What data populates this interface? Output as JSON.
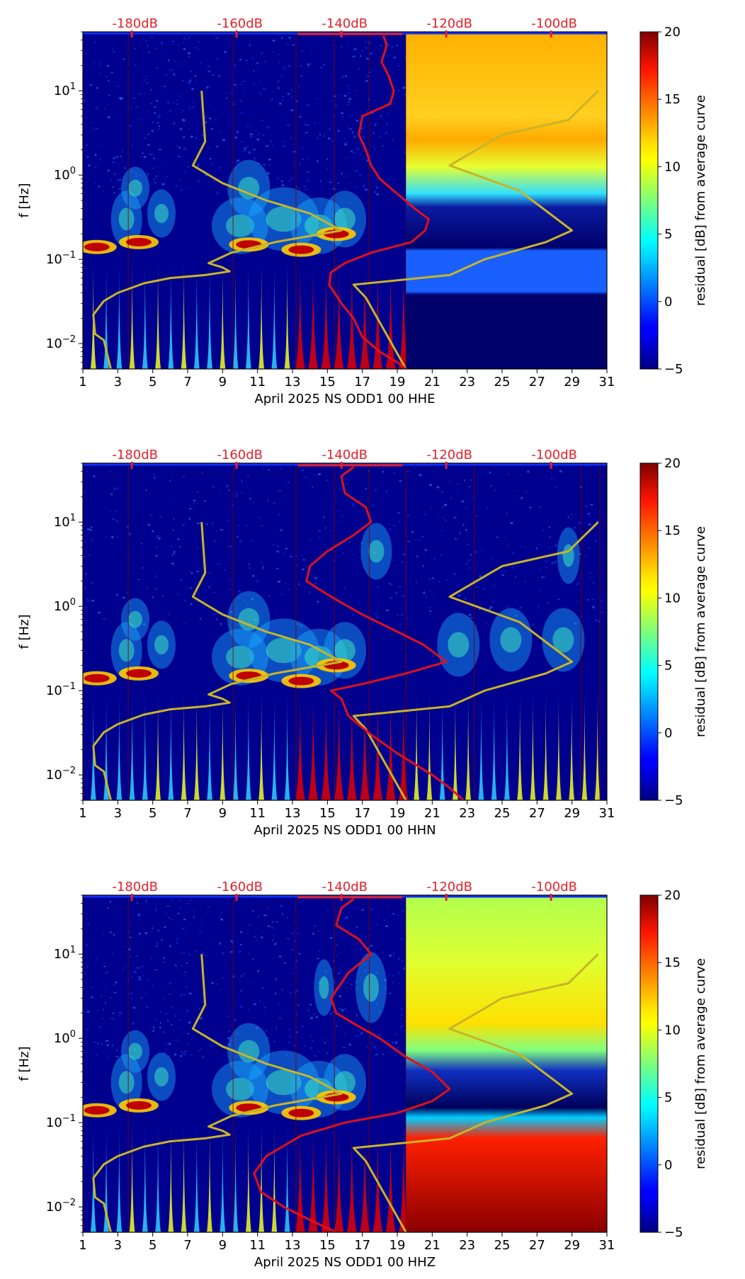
{
  "chart_data": [
    {
      "type": "heatmap",
      "channel": "HHE",
      "xlabel": "April 2025 NS ODD1 00 HHE",
      "ylabel": "f [Hz]",
      "x_ticks": [
        "1",
        "3",
        "5",
        "7",
        "9",
        "11",
        "13",
        "15",
        "17",
        "19",
        "21",
        "23",
        "25",
        "27",
        "29",
        "31"
      ],
      "xlim": [
        1,
        31
      ],
      "ylim": [
        0.005,
        50
      ],
      "y_scale": "log",
      "y_ticks": [
        {
          "value": 0.01,
          "base": "10",
          "exp": "−2"
        },
        {
          "value": 0.1,
          "base": "10",
          "exp": "−1"
        },
        {
          "value": 1,
          "base": "10",
          "exp": "0"
        },
        {
          "value": 10,
          "base": "10",
          "exp": "1"
        }
      ],
      "top_ticks": [
        "-180dB",
        "-160dB",
        "-140dB",
        "-120dB",
        "-100dB"
      ],
      "top_tick_color": "#e8202a",
      "colorbar": {
        "label": "residual [dB] from average curve",
        "min": -5,
        "max": 20,
        "ticks": [
          "20",
          "15",
          "10",
          "5",
          "0",
          "−5"
        ],
        "colormap": "jet"
      },
      "data_end_day": 19.5,
      "background_after_end": "orange-band",
      "yellow_curve": [
        [
          7.8,
          10
        ],
        [
          8.0,
          2.5
        ],
        [
          7.3,
          1.3
        ],
        [
          9.0,
          0.8
        ],
        [
          11.5,
          0.5
        ],
        [
          14.0,
          0.35
        ],
        [
          15.8,
          0.22
        ],
        [
          12.0,
          0.16
        ],
        [
          9.5,
          0.12
        ],
        [
          8.2,
          0.09
        ],
        [
          9.0,
          0.08
        ],
        [
          9.4,
          0.072
        ],
        [
          8.0,
          0.065
        ],
        [
          6.0,
          0.06
        ],
        [
          4.5,
          0.052
        ],
        [
          3.0,
          0.04
        ],
        [
          2.2,
          0.032
        ],
        [
          1.6,
          0.022
        ],
        [
          1.7,
          0.013
        ],
        [
          2.2,
          0.011
        ],
        [
          2.6,
          0.005
        ]
      ],
      "yellow_curve_2": [
        [
          30.5,
          10
        ],
        [
          28.8,
          4.5
        ],
        [
          25.0,
          3.0
        ],
        [
          22.0,
          1.3
        ],
        [
          26.0,
          0.65
        ],
        [
          29.0,
          0.22
        ],
        [
          27.5,
          0.16
        ],
        [
          24.0,
          0.1
        ],
        [
          22.0,
          0.065
        ],
        [
          16.5,
          0.05
        ],
        [
          17.2,
          0.035
        ],
        [
          19.5,
          0.005
        ]
      ],
      "red_curve": [
        [
          18.2,
          45
        ],
        [
          18.4,
          35
        ],
        [
          18.1,
          22
        ],
        [
          18.5,
          15
        ],
        [
          18.8,
          10
        ],
        [
          18.6,
          7
        ],
        [
          17.0,
          5
        ],
        [
          16.8,
          3
        ],
        [
          17.2,
          2
        ],
        [
          17.5,
          1.3
        ],
        [
          18.0,
          0.9
        ],
        [
          19.0,
          0.6
        ],
        [
          20.0,
          0.4
        ],
        [
          20.8,
          0.3
        ],
        [
          20.6,
          0.22
        ],
        [
          19.8,
          0.16
        ],
        [
          17.5,
          0.12
        ],
        [
          16.0,
          0.09
        ],
        [
          15.2,
          0.07
        ],
        [
          15.1,
          0.05
        ],
        [
          15.8,
          0.03
        ],
        [
          16.5,
          0.02
        ],
        [
          17.0,
          0.012
        ],
        [
          18.0,
          0.008
        ],
        [
          19.0,
          0.006
        ],
        [
          19.5,
          0.005
        ]
      ]
    },
    {
      "type": "heatmap",
      "channel": "HHN",
      "xlabel": "April 2025 NS ODD1 00 HHN",
      "ylabel": "f [Hz]",
      "x_ticks": [
        "1",
        "3",
        "5",
        "7",
        "9",
        "11",
        "13",
        "15",
        "17",
        "19",
        "21",
        "23",
        "25",
        "27",
        "29",
        "31"
      ],
      "xlim": [
        1,
        31
      ],
      "ylim": [
        0.005,
        50
      ],
      "y_scale": "log",
      "y_ticks": [
        {
          "value": 0.01,
          "base": "10",
          "exp": "−2"
        },
        {
          "value": 0.1,
          "base": "10",
          "exp": "−1"
        },
        {
          "value": 1,
          "base": "10",
          "exp": "0"
        },
        {
          "value": 10,
          "base": "10",
          "exp": "1"
        }
      ],
      "top_ticks": [
        "-180dB",
        "-160dB",
        "-140dB",
        "-120dB",
        "-100dB"
      ],
      "top_tick_color": "#e8202a",
      "colorbar": {
        "label": "residual [dB] from average curve",
        "min": -5,
        "max": 20,
        "ticks": [
          "20",
          "15",
          "10",
          "5",
          "0",
          "−5"
        ],
        "colormap": "jet"
      },
      "data_end_day": 31,
      "background_after_end": "none",
      "yellow_curve": [
        [
          7.8,
          10
        ],
        [
          8.0,
          2.5
        ],
        [
          7.3,
          1.3
        ],
        [
          9.0,
          0.8
        ],
        [
          11.5,
          0.5
        ],
        [
          14.0,
          0.35
        ],
        [
          15.8,
          0.22
        ],
        [
          12.0,
          0.16
        ],
        [
          9.5,
          0.12
        ],
        [
          8.2,
          0.09
        ],
        [
          9.0,
          0.08
        ],
        [
          9.4,
          0.072
        ],
        [
          8.0,
          0.065
        ],
        [
          6.0,
          0.06
        ],
        [
          4.5,
          0.052
        ],
        [
          3.0,
          0.04
        ],
        [
          2.2,
          0.032
        ],
        [
          1.6,
          0.022
        ],
        [
          1.7,
          0.013
        ],
        [
          2.2,
          0.011
        ],
        [
          2.6,
          0.005
        ]
      ],
      "yellow_curve_2": [
        [
          30.5,
          10
        ],
        [
          28.8,
          4.5
        ],
        [
          25.0,
          3.0
        ],
        [
          22.0,
          1.3
        ],
        [
          26.0,
          0.65
        ],
        [
          29.0,
          0.22
        ],
        [
          27.5,
          0.16
        ],
        [
          24.0,
          0.1
        ],
        [
          22.0,
          0.065
        ],
        [
          16.5,
          0.05
        ],
        [
          17.2,
          0.035
        ],
        [
          19.5,
          0.005
        ]
      ],
      "red_curve": [
        [
          16.5,
          45
        ],
        [
          15.8,
          35
        ],
        [
          16.0,
          22
        ],
        [
          17.2,
          15
        ],
        [
          17.5,
          10
        ],
        [
          16.5,
          7
        ],
        [
          15.0,
          4.5
        ],
        [
          14.0,
          3
        ],
        [
          13.8,
          2
        ],
        [
          14.5,
          1.6
        ],
        [
          15.5,
          1.2
        ],
        [
          17.0,
          0.8
        ],
        [
          19.0,
          0.5
        ],
        [
          20.5,
          0.35
        ],
        [
          21.8,
          0.22
        ],
        [
          19.5,
          0.16
        ],
        [
          17.0,
          0.12
        ],
        [
          15.2,
          0.1
        ],
        [
          15.8,
          0.08
        ],
        [
          16.2,
          0.05
        ],
        [
          17.5,
          0.03
        ],
        [
          19.0,
          0.018
        ],
        [
          21.0,
          0.01
        ],
        [
          22.0,
          0.007
        ],
        [
          22.8,
          0.005
        ]
      ]
    },
    {
      "type": "heatmap",
      "channel": "HHZ",
      "xlabel": "April 2025 NS ODD1 00 HHZ",
      "ylabel": "f [Hz]",
      "x_ticks": [
        "1",
        "3",
        "5",
        "7",
        "9",
        "11",
        "13",
        "15",
        "17",
        "19",
        "21",
        "23",
        "25",
        "27",
        "29",
        "31"
      ],
      "xlim": [
        1,
        31
      ],
      "ylim": [
        0.005,
        50
      ],
      "y_scale": "log",
      "y_ticks": [
        {
          "value": 0.01,
          "base": "10",
          "exp": "−2"
        },
        {
          "value": 0.1,
          "base": "10",
          "exp": "−1"
        },
        {
          "value": 1,
          "base": "10",
          "exp": "0"
        },
        {
          "value": 10,
          "base": "10",
          "exp": "1"
        }
      ],
      "top_ticks": [
        "-180dB",
        "-160dB",
        "-140dB",
        "-120dB",
        "-100dB"
      ],
      "top_tick_color": "#e8202a",
      "colorbar": {
        "label": "residual [dB] from average curve",
        "min": -5,
        "max": 20,
        "ticks": [
          "20",
          "15",
          "10",
          "5",
          "0",
          "−5"
        ],
        "colormap": "jet"
      },
      "data_end_day": 19.5,
      "background_after_end": "yellow-band",
      "yellow_curve": [
        [
          7.8,
          10
        ],
        [
          8.0,
          2.5
        ],
        [
          7.3,
          1.3
        ],
        [
          9.0,
          0.8
        ],
        [
          11.5,
          0.5
        ],
        [
          14.0,
          0.35
        ],
        [
          15.8,
          0.22
        ],
        [
          12.0,
          0.16
        ],
        [
          9.5,
          0.12
        ],
        [
          8.2,
          0.09
        ],
        [
          9.0,
          0.08
        ],
        [
          9.4,
          0.072
        ],
        [
          8.0,
          0.065
        ],
        [
          6.0,
          0.06
        ],
        [
          4.5,
          0.052
        ],
        [
          3.0,
          0.04
        ],
        [
          2.2,
          0.032
        ],
        [
          1.6,
          0.022
        ],
        [
          1.7,
          0.013
        ],
        [
          2.2,
          0.011
        ],
        [
          2.6,
          0.005
        ]
      ],
      "yellow_curve_2": [
        [
          30.5,
          10
        ],
        [
          28.8,
          4.5
        ],
        [
          25.0,
          3.0
        ],
        [
          22.0,
          1.3
        ],
        [
          26.0,
          0.65
        ],
        [
          29.0,
          0.22
        ],
        [
          27.5,
          0.16
        ],
        [
          24.0,
          0.1
        ],
        [
          22.0,
          0.065
        ],
        [
          16.5,
          0.05
        ],
        [
          17.2,
          0.035
        ],
        [
          19.5,
          0.005
        ]
      ],
      "red_curve": [
        [
          16.5,
          45
        ],
        [
          15.8,
          35
        ],
        [
          15.5,
          22
        ],
        [
          16.8,
          15
        ],
        [
          17.5,
          10
        ],
        [
          16.2,
          6
        ],
        [
          15.2,
          3
        ],
        [
          15.5,
          2
        ],
        [
          16.5,
          1.5
        ],
        [
          18.0,
          1.0
        ],
        [
          19.5,
          0.6
        ],
        [
          21.0,
          0.4
        ],
        [
          22.0,
          0.25
        ],
        [
          21.0,
          0.18
        ],
        [
          19.0,
          0.13
        ],
        [
          16.0,
          0.1
        ],
        [
          13.5,
          0.07
        ],
        [
          11.5,
          0.04
        ],
        [
          10.8,
          0.025
        ],
        [
          11.2,
          0.015
        ],
        [
          12.5,
          0.01
        ],
        [
          14.0,
          0.007
        ],
        [
          15.5,
          0.005
        ]
      ]
    }
  ]
}
